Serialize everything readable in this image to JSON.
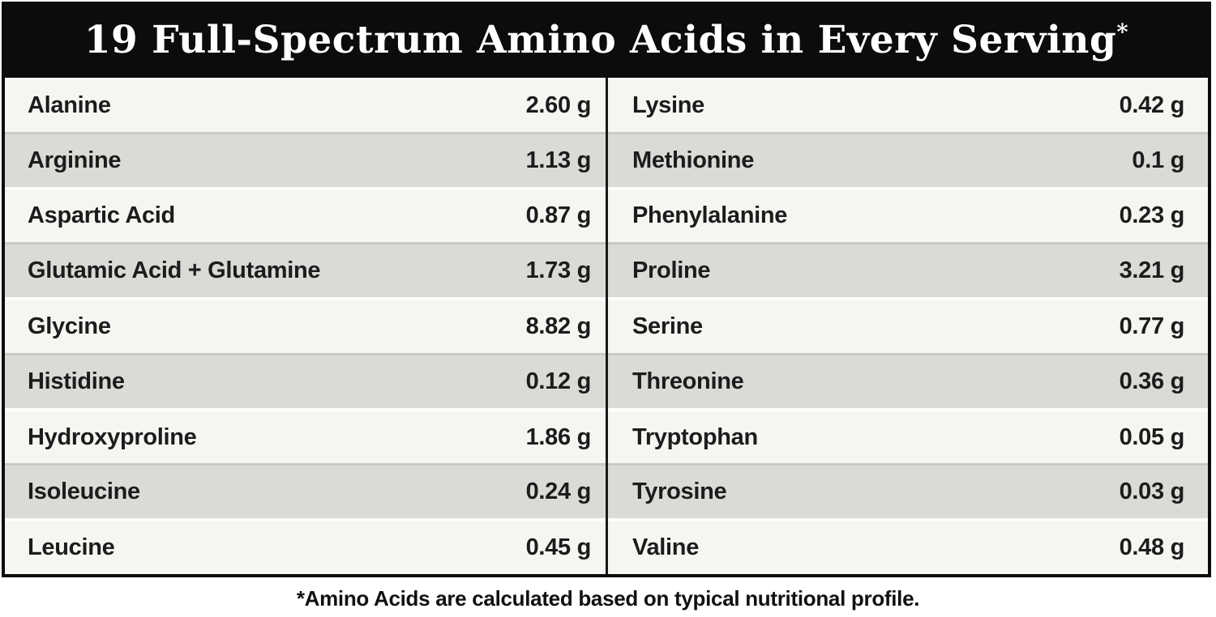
{
  "header": {
    "title": "19 Full-Spectrum Amino Acids in Every Serving",
    "asterisk": "*"
  },
  "columns": {
    "left": [
      {
        "name": "Alanine",
        "amount": "2.60 g"
      },
      {
        "name": "Arginine",
        "amount": "1.13 g"
      },
      {
        "name": "Aspartic Acid",
        "amount": "0.87 g"
      },
      {
        "name": "Glutamic Acid + Glutamine",
        "amount": "1.73 g"
      },
      {
        "name": "Glycine",
        "amount": "8.82 g"
      },
      {
        "name": "Histidine",
        "amount": "0.12 g"
      },
      {
        "name": "Hydroxyproline",
        "amount": "1.86 g"
      },
      {
        "name": "Isoleucine",
        "amount": "0.24 g"
      },
      {
        "name": "Leucine",
        "amount": "0.45 g"
      }
    ],
    "right": [
      {
        "name": "Lysine",
        "amount": "0.42 g"
      },
      {
        "name": "Methionine",
        "amount": "0.1 g"
      },
      {
        "name": "Phenylalanine",
        "amount": "0.23 g"
      },
      {
        "name": "Proline",
        "amount": "3.21 g"
      },
      {
        "name": "Serine",
        "amount": "0.77 g"
      },
      {
        "name": "Threonine",
        "amount": "0.36 g"
      },
      {
        "name": "Tryptophan",
        "amount": "0.05 g"
      },
      {
        "name": "Tyrosine",
        "amount": "0.03 g"
      },
      {
        "name": "Valine",
        "amount": "0.48 g"
      }
    ]
  },
  "footnote": "*Amino Acids are calculated based on typical nutritional profile.",
  "colors": {
    "header_bg": "#0c0c0c",
    "header_text": "#ffffff",
    "row_light": "#f6f5f2",
    "row_gray": "#dbdad7",
    "sep_light": "#fdfdfc",
    "sep_dark": "#c9c8c2",
    "divider": "#181818",
    "border": "#0c0c0c",
    "text": "#1c1c1c"
  }
}
